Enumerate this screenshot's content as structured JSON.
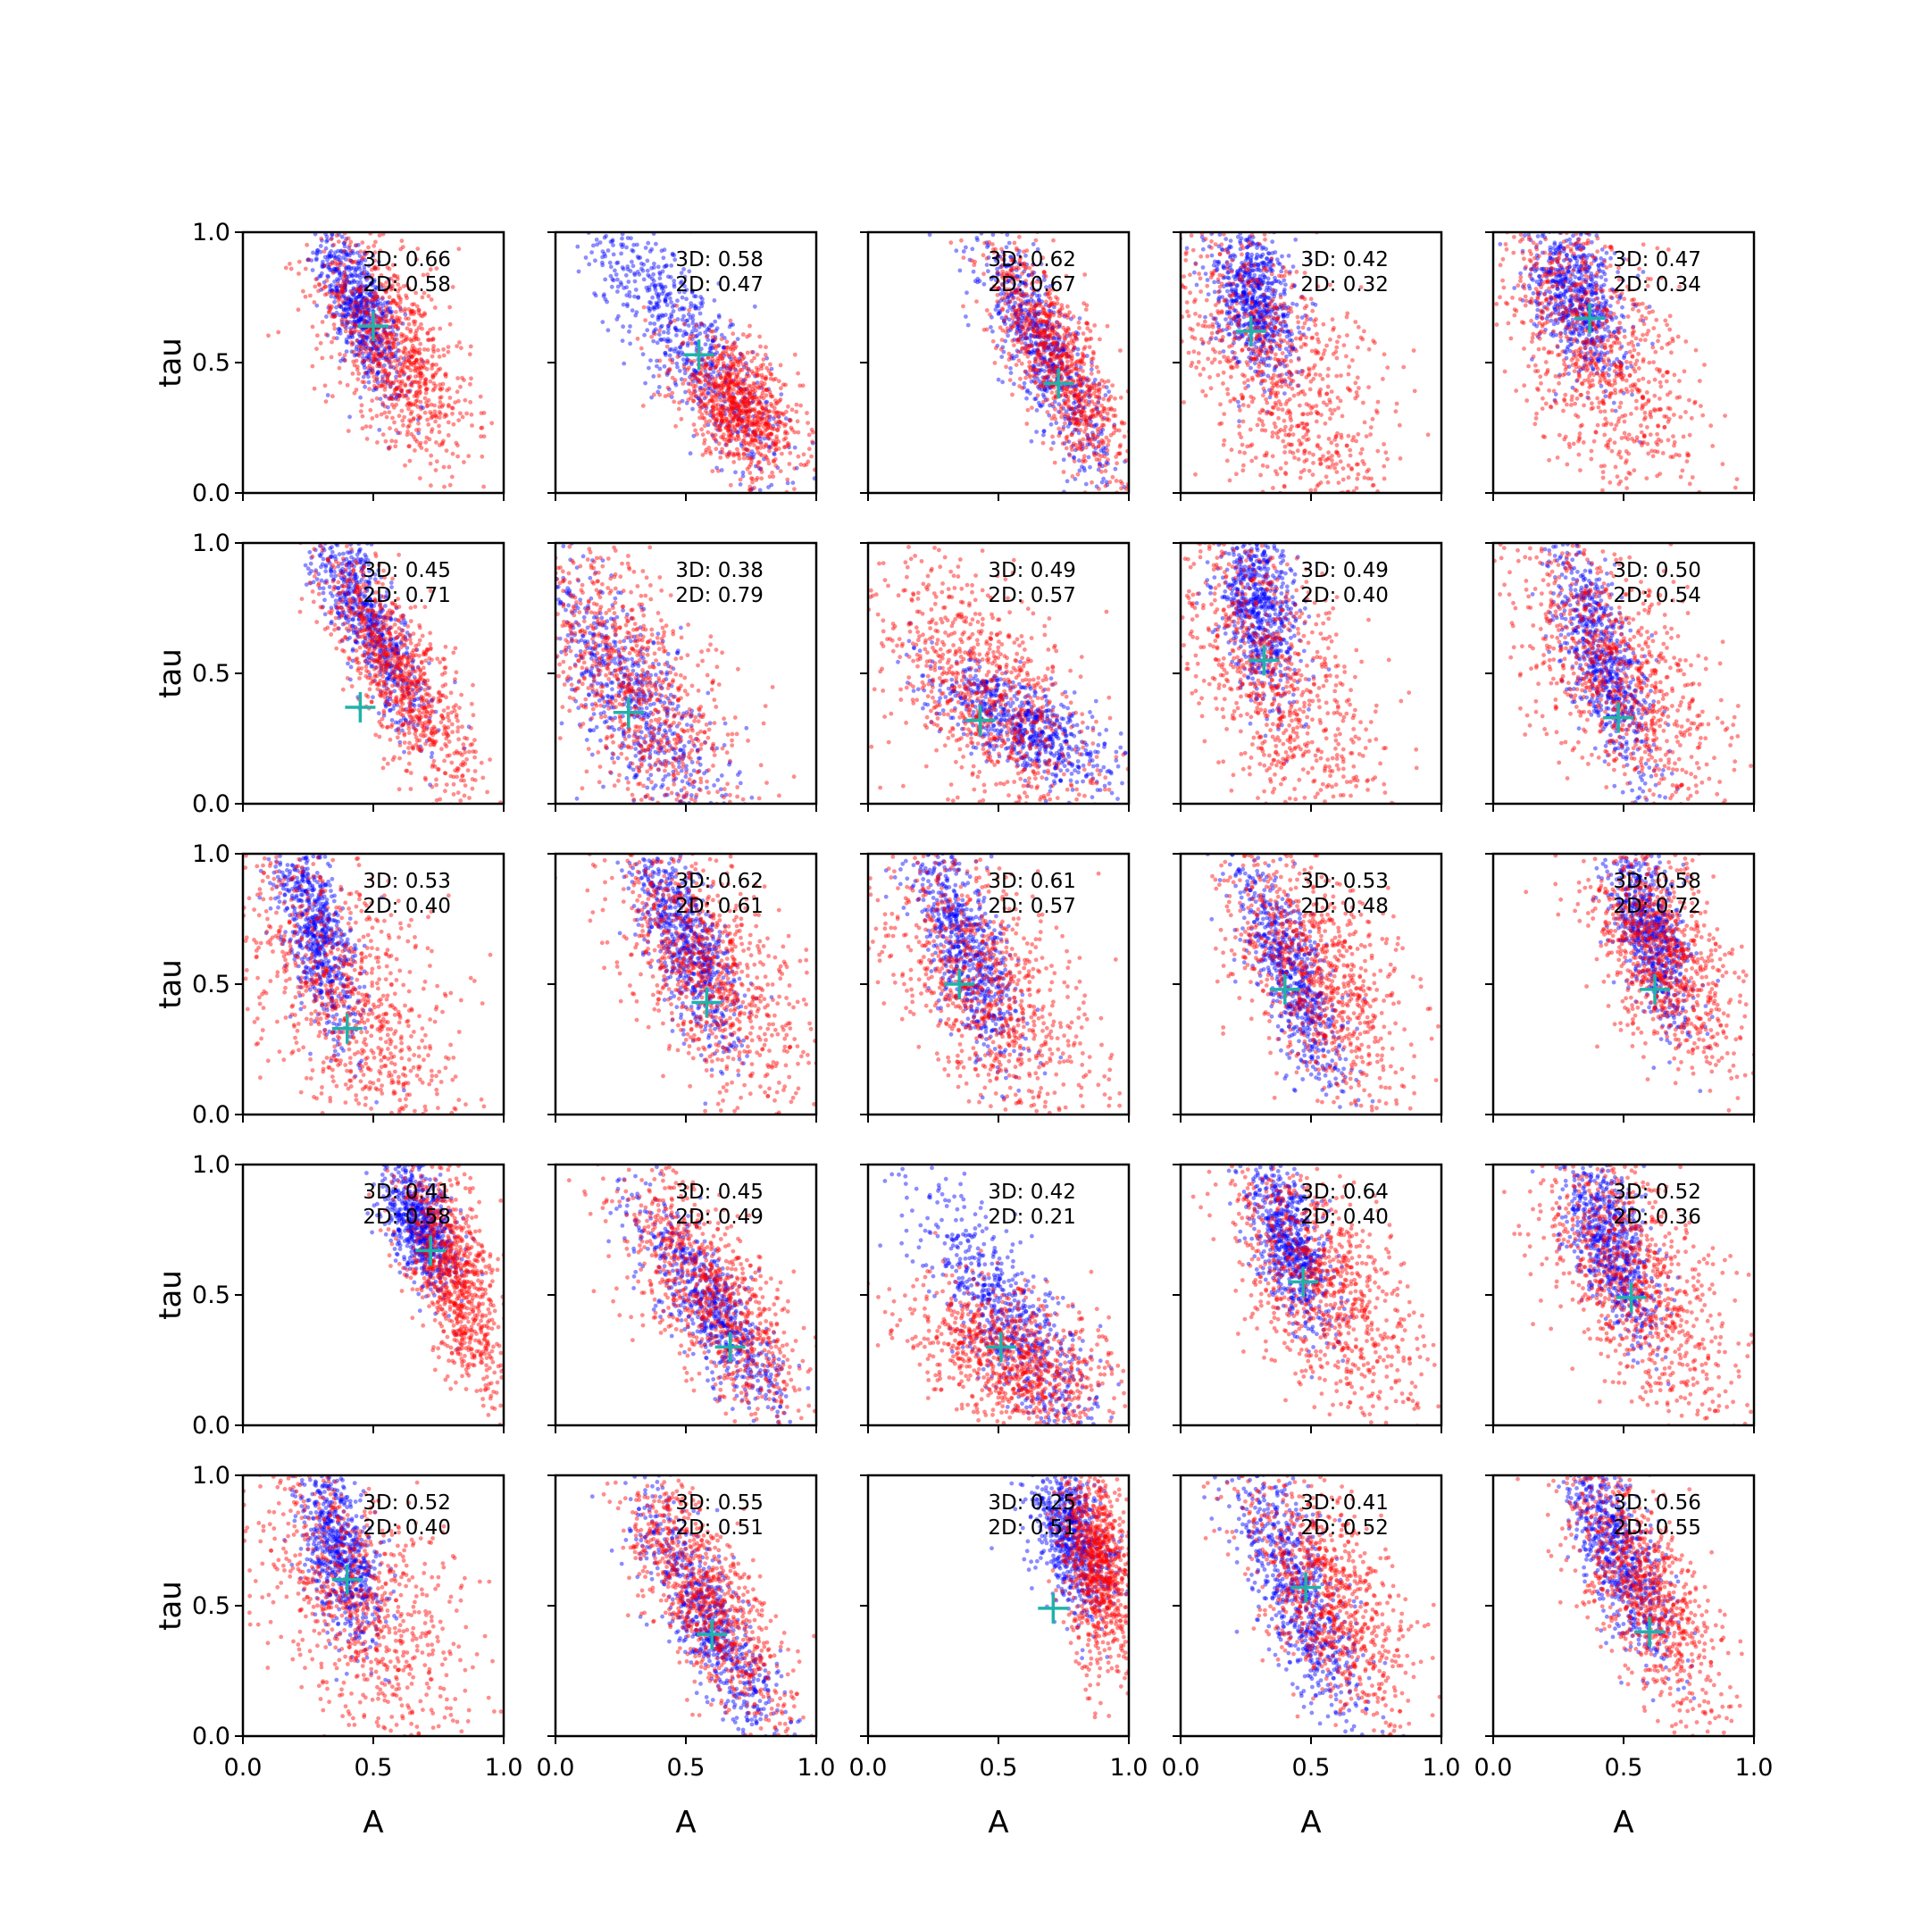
{
  "chart_data": {
    "type": "scatter",
    "layout": "5x5 grid of scatter panels, shared axes",
    "xlabel": "A",
    "ylabel": "tau",
    "xlim": [
      0.0,
      1.0
    ],
    "ylim": [
      0.0,
      1.0
    ],
    "xticks": [
      "0.0",
      "0.5",
      "1.0"
    ],
    "yticks": [
      "0.0",
      "0.5",
      "1.0"
    ],
    "grid": false,
    "colors": {
      "series_a": "#0000ff",
      "series_b": "#ff0000",
      "marker": "#20b2aa"
    },
    "panels": [
      {
        "row": 0,
        "col": 0,
        "label3d": "3D: 0.66",
        "label2d": "2D: 0.58",
        "marker": [
          0.5,
          0.64
        ],
        "blue": {
          "cx": 0.45,
          "cy": 0.7,
          "sx": 0.08,
          "sy": 0.17,
          "corr": -0.7
        },
        "red": {
          "cx": 0.58,
          "cy": 0.55,
          "sx": 0.15,
          "sy": 0.22,
          "corr": -0.6
        }
      },
      {
        "row": 0,
        "col": 1,
        "label3d": "3D: 0.58",
        "label2d": "2D: 0.47",
        "marker": [
          0.55,
          0.53
        ],
        "blue": {
          "cx": 0.5,
          "cy": 0.6,
          "sx": 0.2,
          "sy": 0.28,
          "corr": -0.85
        },
        "red": {
          "cx": 0.7,
          "cy": 0.33,
          "sx": 0.12,
          "sy": 0.13,
          "corr": -0.5
        }
      },
      {
        "row": 0,
        "col": 2,
        "label3d": "3D: 0.62",
        "label2d": "2D: 0.67",
        "marker": [
          0.73,
          0.42
        ],
        "blue": {
          "cx": 0.67,
          "cy": 0.55,
          "sx": 0.12,
          "sy": 0.22,
          "corr": -0.8
        },
        "red": {
          "cx": 0.73,
          "cy": 0.5,
          "sx": 0.14,
          "sy": 0.24,
          "corr": -0.8
        }
      },
      {
        "row": 0,
        "col": 3,
        "label3d": "3D: 0.42",
        "label2d": "2D: 0.32",
        "marker": [
          0.27,
          0.62
        ],
        "blue": {
          "cx": 0.28,
          "cy": 0.75,
          "sx": 0.08,
          "sy": 0.15,
          "corr": -0.3
        },
        "red": {
          "cx": 0.38,
          "cy": 0.45,
          "sx": 0.22,
          "sy": 0.32,
          "corr": -0.6
        }
      },
      {
        "row": 0,
        "col": 4,
        "label3d": "3D: 0.47",
        "label2d": "2D: 0.34",
        "marker": [
          0.37,
          0.67
        ],
        "blue": {
          "cx": 0.32,
          "cy": 0.75,
          "sx": 0.09,
          "sy": 0.15,
          "corr": -0.4
        },
        "red": {
          "cx": 0.4,
          "cy": 0.55,
          "sx": 0.2,
          "sy": 0.3,
          "corr": -0.6
        }
      },
      {
        "row": 1,
        "col": 0,
        "label3d": "3D: 0.45",
        "label2d": "2D: 0.71",
        "marker": [
          0.45,
          0.37
        ],
        "blue": {
          "cx": 0.48,
          "cy": 0.7,
          "sx": 0.12,
          "sy": 0.22,
          "corr": -0.85
        },
        "red": {
          "cx": 0.6,
          "cy": 0.5,
          "sx": 0.15,
          "sy": 0.24,
          "corr": -0.8
        }
      },
      {
        "row": 1,
        "col": 1,
        "label3d": "3D: 0.38",
        "label2d": "2D: 0.79",
        "marker": [
          0.28,
          0.35
        ],
        "blue": {
          "cx": 0.3,
          "cy": 0.4,
          "sx": 0.2,
          "sy": 0.28,
          "corr": -0.8
        },
        "red": {
          "cx": 0.3,
          "cy": 0.45,
          "sx": 0.22,
          "sy": 0.3,
          "corr": -0.7
        }
      },
      {
        "row": 1,
        "col": 2,
        "label3d": "3D: 0.49",
        "label2d": "2D: 0.57",
        "marker": [
          0.43,
          0.32
        ],
        "blue": {
          "cx": 0.6,
          "cy": 0.3,
          "sx": 0.17,
          "sy": 0.12,
          "corr": -0.7
        },
        "red": {
          "cx": 0.45,
          "cy": 0.4,
          "sx": 0.22,
          "sy": 0.28,
          "corr": -0.6
        }
      },
      {
        "row": 1,
        "col": 3,
        "label3d": "3D: 0.49",
        "label2d": "2D: 0.40",
        "marker": [
          0.32,
          0.55
        ],
        "blue": {
          "cx": 0.3,
          "cy": 0.75,
          "sx": 0.08,
          "sy": 0.18,
          "corr": -0.3
        },
        "red": {
          "cx": 0.35,
          "cy": 0.5,
          "sx": 0.2,
          "sy": 0.32,
          "corr": -0.6
        }
      },
      {
        "row": 1,
        "col": 4,
        "label3d": "3D: 0.50",
        "label2d": "2D: 0.54",
        "marker": [
          0.48,
          0.33
        ],
        "blue": {
          "cx": 0.42,
          "cy": 0.55,
          "sx": 0.1,
          "sy": 0.22,
          "corr": -0.7
        },
        "red": {
          "cx": 0.48,
          "cy": 0.5,
          "sx": 0.2,
          "sy": 0.27,
          "corr": -0.6
        }
      },
      {
        "row": 2,
        "col": 0,
        "label3d": "3D: 0.53",
        "label2d": "2D: 0.40",
        "marker": [
          0.4,
          0.33
        ],
        "blue": {
          "cx": 0.28,
          "cy": 0.7,
          "sx": 0.08,
          "sy": 0.2,
          "corr": -0.6
        },
        "red": {
          "cx": 0.4,
          "cy": 0.45,
          "sx": 0.22,
          "sy": 0.32,
          "corr": -0.6
        }
      },
      {
        "row": 2,
        "col": 1,
        "label3d": "3D: 0.62",
        "label2d": "2D: 0.61",
        "marker": [
          0.58,
          0.43
        ],
        "blue": {
          "cx": 0.5,
          "cy": 0.65,
          "sx": 0.1,
          "sy": 0.2,
          "corr": -0.7
        },
        "red": {
          "cx": 0.58,
          "cy": 0.55,
          "sx": 0.18,
          "sy": 0.26,
          "corr": -0.6
        }
      },
      {
        "row": 2,
        "col": 2,
        "label3d": "3D: 0.61",
        "label2d": "2D: 0.57",
        "marker": [
          0.35,
          0.5
        ],
        "blue": {
          "cx": 0.37,
          "cy": 0.65,
          "sx": 0.1,
          "sy": 0.22,
          "corr": -0.7
        },
        "red": {
          "cx": 0.45,
          "cy": 0.5,
          "sx": 0.22,
          "sy": 0.28,
          "corr": -0.6
        }
      },
      {
        "row": 2,
        "col": 3,
        "label3d": "3D: 0.53",
        "label2d": "2D: 0.48",
        "marker": [
          0.4,
          0.48
        ],
        "blue": {
          "cx": 0.42,
          "cy": 0.55,
          "sx": 0.1,
          "sy": 0.22,
          "corr": -0.75
        },
        "red": {
          "cx": 0.52,
          "cy": 0.55,
          "sx": 0.18,
          "sy": 0.26,
          "corr": -0.6
        }
      },
      {
        "row": 2,
        "col": 4,
        "label3d": "3D: 0.58",
        "label2d": "2D: 0.72",
        "marker": [
          0.62,
          0.48
        ],
        "blue": {
          "cx": 0.6,
          "cy": 0.7,
          "sx": 0.08,
          "sy": 0.18,
          "corr": -0.6
        },
        "red": {
          "cx": 0.65,
          "cy": 0.62,
          "sx": 0.14,
          "sy": 0.22,
          "corr": -0.5
        }
      },
      {
        "row": 3,
        "col": 0,
        "label3d": "3D: 0.41",
        "label2d": "2D: 0.58",
        "marker": [
          0.72,
          0.67
        ],
        "blue": {
          "cx": 0.68,
          "cy": 0.75,
          "sx": 0.07,
          "sy": 0.12,
          "corr": -0.5
        },
        "red": {
          "cx": 0.82,
          "cy": 0.55,
          "sx": 0.1,
          "sy": 0.22,
          "corr": -0.6
        }
      },
      {
        "row": 3,
        "col": 1,
        "label3d": "3D: 0.45",
        "label2d": "2D: 0.49",
        "marker": [
          0.67,
          0.3
        ],
        "blue": {
          "cx": 0.6,
          "cy": 0.45,
          "sx": 0.15,
          "sy": 0.22,
          "corr": -0.85
        },
        "red": {
          "cx": 0.6,
          "cy": 0.5,
          "sx": 0.18,
          "sy": 0.26,
          "corr": -0.7
        }
      },
      {
        "row": 3,
        "col": 2,
        "label3d": "3D: 0.42",
        "label2d": "2D: 0.21",
        "marker": [
          0.51,
          0.3
        ],
        "blue": {
          "cx": 0.55,
          "cy": 0.4,
          "sx": 0.18,
          "sy": 0.25,
          "corr": -0.8
        },
        "red": {
          "cx": 0.55,
          "cy": 0.25,
          "sx": 0.2,
          "sy": 0.15,
          "corr": -0.5
        }
      },
      {
        "row": 3,
        "col": 3,
        "label3d": "3D: 0.64",
        "label2d": "2D: 0.40",
        "marker": [
          0.47,
          0.55
        ],
        "blue": {
          "cx": 0.42,
          "cy": 0.7,
          "sx": 0.08,
          "sy": 0.17,
          "corr": -0.6
        },
        "red": {
          "cx": 0.55,
          "cy": 0.55,
          "sx": 0.18,
          "sy": 0.25,
          "corr": -0.6
        }
      },
      {
        "row": 3,
        "col": 4,
        "label3d": "3D: 0.52",
        "label2d": "2D: 0.36",
        "marker": [
          0.53,
          0.49
        ],
        "blue": {
          "cx": 0.45,
          "cy": 0.7,
          "sx": 0.09,
          "sy": 0.18,
          "corr": -0.6
        },
        "red": {
          "cx": 0.55,
          "cy": 0.55,
          "sx": 0.18,
          "sy": 0.26,
          "corr": -0.6
        }
      },
      {
        "row": 4,
        "col": 0,
        "label3d": "3D: 0.52",
        "label2d": "2D: 0.40",
        "marker": [
          0.4,
          0.6
        ],
        "blue": {
          "cx": 0.37,
          "cy": 0.7,
          "sx": 0.08,
          "sy": 0.17,
          "corr": -0.5
        },
        "red": {
          "cx": 0.45,
          "cy": 0.5,
          "sx": 0.22,
          "sy": 0.3,
          "corr": -0.6
        }
      },
      {
        "row": 4,
        "col": 1,
        "label3d": "3D: 0.55",
        "label2d": "2D: 0.51",
        "marker": [
          0.6,
          0.39
        ],
        "blue": {
          "cx": 0.58,
          "cy": 0.45,
          "sx": 0.14,
          "sy": 0.25,
          "corr": -0.85
        },
        "red": {
          "cx": 0.58,
          "cy": 0.52,
          "sx": 0.17,
          "sy": 0.26,
          "corr": -0.75
        }
      },
      {
        "row": 4,
        "col": 2,
        "label3d": "3D: 0.25",
        "label2d": "2D: 0.51",
        "marker": [
          0.71,
          0.49
        ],
        "blue": {
          "cx": 0.78,
          "cy": 0.75,
          "sx": 0.08,
          "sy": 0.15,
          "corr": -0.5
        },
        "red": {
          "cx": 0.88,
          "cy": 0.65,
          "sx": 0.07,
          "sy": 0.2,
          "corr": -0.3
        }
      },
      {
        "row": 4,
        "col": 3,
        "label3d": "3D: 0.41",
        "label2d": "2D: 0.52",
        "marker": [
          0.48,
          0.57
        ],
        "blue": {
          "cx": 0.45,
          "cy": 0.55,
          "sx": 0.12,
          "sy": 0.25,
          "corr": -0.75
        },
        "red": {
          "cx": 0.55,
          "cy": 0.55,
          "sx": 0.16,
          "sy": 0.26,
          "corr": -0.6
        }
      },
      {
        "row": 4,
        "col": 4,
        "label3d": "3D: 0.56",
        "label2d": "2D: 0.55",
        "marker": [
          0.6,
          0.4
        ],
        "blue": {
          "cx": 0.48,
          "cy": 0.7,
          "sx": 0.1,
          "sy": 0.2,
          "corr": -0.7
        },
        "red": {
          "cx": 0.58,
          "cy": 0.55,
          "sx": 0.15,
          "sy": 0.25,
          "corr": -0.7
        }
      }
    ]
  }
}
